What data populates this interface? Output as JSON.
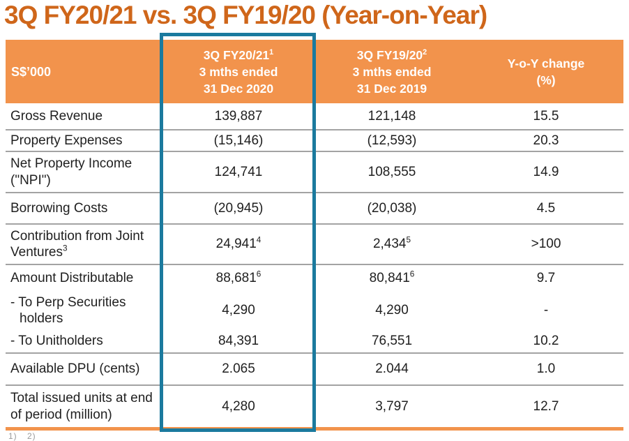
{
  "title": "3Q FY20/21 vs. 3Q FY19/20 (Year-on-Year)",
  "colors": {
    "accent_orange": "#F2934C",
    "title_orange": "#CF661A",
    "highlight_blue": "#1B7A9E",
    "divider_gray": "#A3A3A3"
  },
  "table": {
    "header": {
      "col_label": "S$’000",
      "col_fy2021": {
        "period": "3Q FY20/21",
        "period_sup": "1",
        "line2": "3 mths ended",
        "line3": "31 Dec 2020"
      },
      "col_fy1920": {
        "period": "3Q FY19/20",
        "period_sup": "2",
        "line2": "3 mths ended",
        "line3": "31 Dec 2019"
      },
      "col_yoy": {
        "line1": "Y-o-Y change",
        "line2": "(%)"
      }
    },
    "rows": [
      {
        "label": "Gross Revenue",
        "label_sup": "",
        "fy2021": "139,887",
        "fy2021_sup": "",
        "fy1920": "121,148",
        "fy1920_sup": "",
        "yoy": "15.5"
      },
      {
        "label": "Property Expenses",
        "label_sup": "",
        "fy2021": "(15,146)",
        "fy2021_sup": "",
        "fy1920": "(12,593)",
        "fy1920_sup": "",
        "yoy": "20.3"
      },
      {
        "label": "Net Property Income (\"NPI\")",
        "label_sup": "",
        "fy2021": "124,741",
        "fy2021_sup": "",
        "fy1920": "108,555",
        "fy1920_sup": "",
        "yoy": "14.9"
      },
      {
        "label": "Borrowing Costs",
        "label_sup": "",
        "fy2021": "(20,945)",
        "fy2021_sup": "",
        "fy1920": "(20,038)",
        "fy1920_sup": "",
        "yoy": "4.5"
      },
      {
        "label": "Contribution from Joint Ventures",
        "label_sup": "3",
        "fy2021": "24,941",
        "fy2021_sup": "4",
        "fy1920": "2,434",
        "fy1920_sup": "5",
        "yoy": ">100"
      },
      {
        "label": "Amount Distributable",
        "label_sup": "",
        "fy2021": "88,681",
        "fy2021_sup": "6",
        "fy1920": "80,841",
        "fy1920_sup": "6",
        "yoy": "9.7"
      },
      {
        "label": "- To Perp Securities holders",
        "label_sup": "",
        "fy2021": "4,290",
        "fy2021_sup": "",
        "fy1920": "4,290",
        "fy1920_sup": "",
        "yoy": "-"
      },
      {
        "label": "- To Unitholders",
        "label_sup": "",
        "fy2021": "84,391",
        "fy2021_sup": "",
        "fy1920": "76,551",
        "fy1920_sup": "",
        "yoy": "10.2"
      },
      {
        "label": "Available DPU (cents)",
        "label_sup": "",
        "fy2021": "2.065",
        "fy2021_sup": "",
        "fy1920": "2.044",
        "fy1920_sup": "",
        "yoy": "1.0"
      },
      {
        "label": "Total issued units at end of period (million)",
        "label_sup": "",
        "fy2021": "4,280",
        "fy2021_sup": "",
        "fy1920": "3,797",
        "fy1920_sup": "",
        "yoy": "12.7"
      }
    ]
  },
  "footnote_fragment": "1)  2)"
}
